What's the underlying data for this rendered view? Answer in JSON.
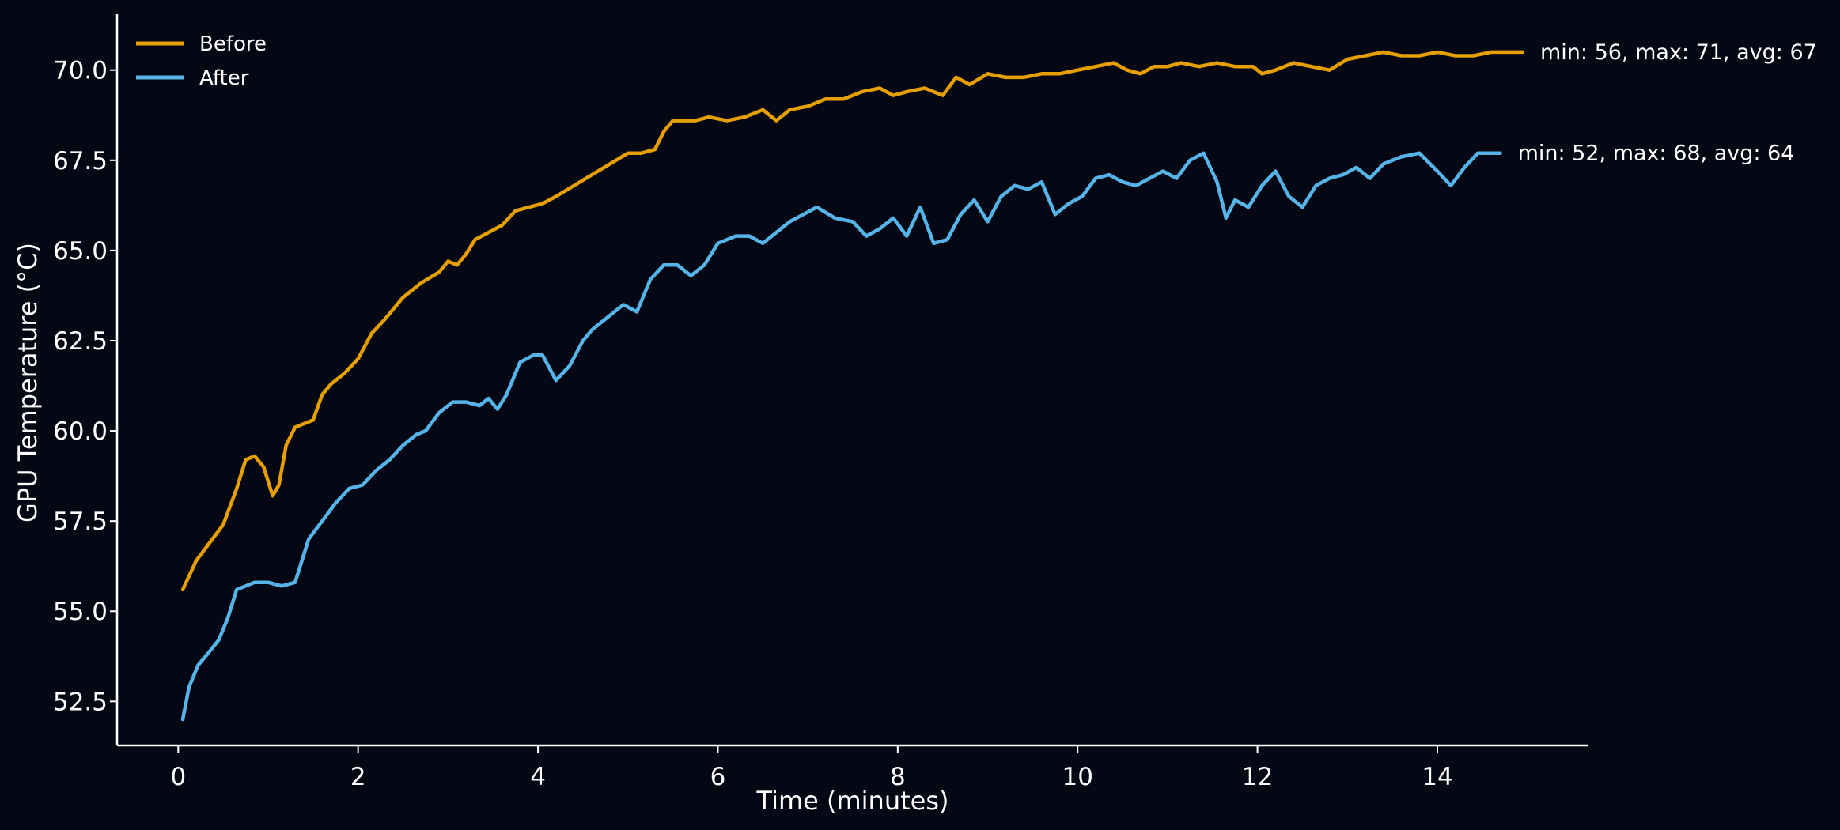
{
  "chart_data": {
    "type": "line",
    "title": "",
    "xlabel": "Time (minutes)",
    "ylabel": "GPU Temperature (°C)",
    "xlim": [
      -0.68,
      15.68
    ],
    "ylim": [
      51.28,
      71.55
    ],
    "xticks": [
      0,
      2,
      4,
      6,
      8,
      10,
      12,
      14
    ],
    "xtick_labels": [
      "0",
      "2",
      "4",
      "6",
      "8",
      "10",
      "12",
      "14"
    ],
    "yticks": [
      52.5,
      55.0,
      57.5,
      60.0,
      62.5,
      65.0,
      67.5,
      70.0
    ],
    "ytick_labels": [
      "52.5",
      "55.0",
      "57.5",
      "60.0",
      "62.5",
      "65.0",
      "67.5",
      "70.0"
    ],
    "grid": false,
    "legend_position": "top-left",
    "series": [
      {
        "name": "Before",
        "color": "#E69F00",
        "end_label": "min: 56, max: 71, avg: 67",
        "x": [
          0.05,
          0.2,
          0.35,
          0.5,
          0.65,
          0.75,
          0.85,
          0.95,
          1.0,
          1.05,
          1.12,
          1.2,
          1.3,
          1.4,
          1.5,
          1.6,
          1.7,
          1.85,
          2.0,
          2.15,
          2.3,
          2.5,
          2.7,
          2.9,
          3.0,
          3.1,
          3.2,
          3.3,
          3.45,
          3.6,
          3.75,
          3.9,
          4.05,
          4.2,
          4.4,
          4.6,
          4.8,
          5.0,
          5.15,
          5.3,
          5.4,
          5.5,
          5.6,
          5.75,
          5.9,
          6.1,
          6.3,
          6.5,
          6.65,
          6.8,
          7.0,
          7.2,
          7.4,
          7.6,
          7.8,
          7.95,
          8.1,
          8.3,
          8.5,
          8.65,
          8.8,
          9.0,
          9.2,
          9.4,
          9.6,
          9.8,
          10.0,
          10.2,
          10.4,
          10.55,
          10.7,
          10.85,
          11.0,
          11.15,
          11.35,
          11.55,
          11.75,
          11.95,
          12.05,
          12.2,
          12.4,
          12.6,
          12.8,
          13.0,
          13.2,
          13.4,
          13.6,
          13.8,
          14.0,
          14.2,
          14.4,
          14.6,
          14.75,
          14.95
        ],
        "values": [
          55.6,
          56.4,
          56.9,
          57.4,
          58.4,
          59.2,
          59.3,
          59.0,
          58.6,
          58.2,
          58.5,
          59.6,
          60.1,
          60.2,
          60.3,
          61.0,
          61.3,
          61.6,
          62.0,
          62.7,
          63.1,
          63.7,
          64.1,
          64.4,
          64.7,
          64.6,
          64.9,
          65.3,
          65.5,
          65.7,
          66.1,
          66.2,
          66.3,
          66.5,
          66.8,
          67.1,
          67.4,
          67.7,
          67.7,
          67.8,
          68.3,
          68.6,
          68.6,
          68.6,
          68.7,
          68.6,
          68.7,
          68.9,
          68.6,
          68.9,
          69.0,
          69.2,
          69.2,
          69.4,
          69.5,
          69.3,
          69.4,
          69.5,
          69.3,
          69.8,
          69.6,
          69.9,
          69.8,
          69.8,
          69.9,
          69.9,
          70.0,
          70.1,
          70.2,
          70.0,
          69.9,
          70.1,
          70.1,
          70.2,
          70.1,
          70.2,
          70.1,
          70.1,
          69.9,
          70.0,
          70.2,
          70.1,
          70.0,
          70.3,
          70.4,
          70.5,
          70.4,
          70.4,
          70.5,
          70.4,
          70.4,
          70.5,
          70.5,
          70.5
        ]
      },
      {
        "name": "After",
        "color": "#56B4E9",
        "end_label": "min: 52, max: 68, avg: 64",
        "x": [
          0.05,
          0.12,
          0.22,
          0.32,
          0.45,
          0.55,
          0.65,
          0.75,
          0.85,
          1.0,
          1.15,
          1.3,
          1.45,
          1.6,
          1.75,
          1.9,
          2.05,
          2.2,
          2.35,
          2.5,
          2.65,
          2.75,
          2.9,
          3.05,
          3.2,
          3.35,
          3.45,
          3.55,
          3.65,
          3.8,
          3.95,
          4.05,
          4.2,
          4.35,
          4.5,
          4.6,
          4.8,
          4.95,
          5.1,
          5.25,
          5.4,
          5.55,
          5.7,
          5.85,
          6.0,
          6.2,
          6.35,
          6.5,
          6.65,
          6.8,
          6.95,
          7.1,
          7.3,
          7.5,
          7.65,
          7.8,
          7.95,
          8.1,
          8.25,
          8.4,
          8.55,
          8.7,
          8.85,
          9.0,
          9.15,
          9.3,
          9.45,
          9.6,
          9.75,
          9.9,
          10.05,
          10.2,
          10.35,
          10.5,
          10.65,
          10.8,
          10.95,
          11.1,
          11.25,
          11.4,
          11.55,
          11.65,
          11.75,
          11.9,
          12.05,
          12.2,
          12.35,
          12.5,
          12.65,
          12.8,
          12.95,
          13.1,
          13.25,
          13.4,
          13.6,
          13.8,
          14.0,
          14.15,
          14.3,
          14.45,
          14.6,
          14.7
        ],
        "values": [
          52.0,
          52.9,
          53.5,
          53.8,
          54.2,
          54.8,
          55.6,
          55.7,
          55.8,
          55.8,
          55.7,
          55.8,
          57.0,
          57.5,
          58.0,
          58.4,
          58.5,
          58.9,
          59.2,
          59.6,
          59.9,
          60.0,
          60.5,
          60.8,
          60.8,
          60.7,
          60.9,
          60.6,
          61.0,
          61.9,
          62.1,
          62.1,
          61.4,
          61.8,
          62.5,
          62.8,
          63.2,
          63.5,
          63.3,
          64.2,
          64.6,
          64.6,
          64.3,
          64.6,
          65.2,
          65.4,
          65.4,
          65.2,
          65.5,
          65.8,
          66.0,
          66.2,
          65.9,
          65.8,
          65.4,
          65.6,
          65.9,
          65.4,
          66.2,
          65.2,
          65.3,
          66.0,
          66.4,
          65.8,
          66.5,
          66.8,
          66.7,
          66.9,
          66.0,
          66.3,
          66.5,
          67.0,
          67.1,
          66.9,
          66.8,
          67.0,
          67.2,
          67.0,
          67.5,
          67.7,
          66.9,
          65.9,
          66.4,
          66.2,
          66.8,
          67.2,
          66.5,
          66.2,
          66.8,
          67.0,
          67.1,
          67.3,
          67.0,
          67.4,
          67.6,
          67.7,
          67.2,
          66.8,
          67.3,
          67.7,
          67.7,
          67.7
        ]
      }
    ]
  }
}
